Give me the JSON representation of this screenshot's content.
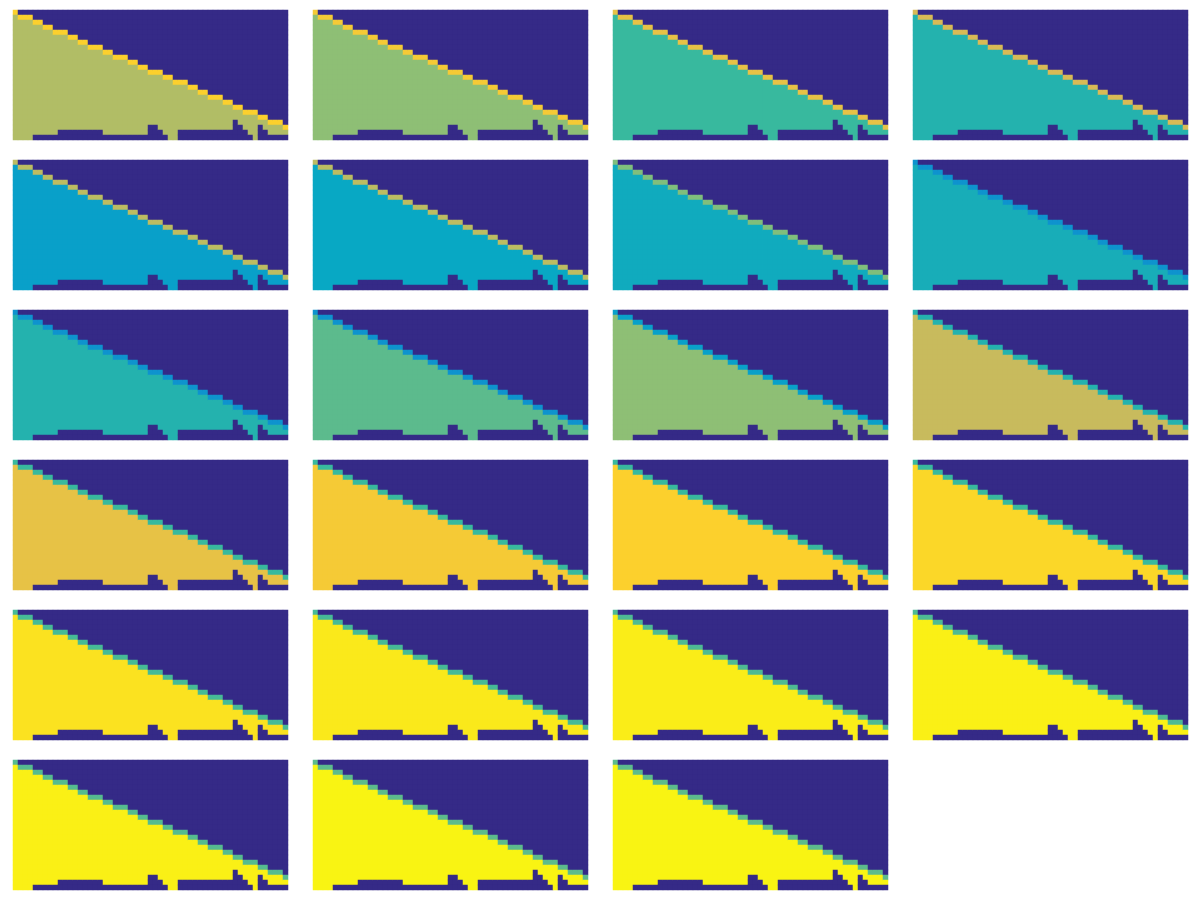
{
  "chart_data": {
    "type": "heatmap",
    "tick_labels": false,
    "color_range": [
      0,
      1
    ],
    "mask_rows": 26,
    "columns": [
      [
        0,
        25
      ],
      [
        1,
        25
      ],
      [
        1,
        25
      ],
      [
        1,
        25
      ],
      [
        2,
        24
      ],
      [
        2,
        24
      ],
      [
        3,
        24
      ],
      [
        3,
        24
      ],
      [
        4,
        24
      ],
      [
        4,
        23
      ],
      [
        4,
        23
      ],
      [
        5,
        23
      ],
      [
        5,
        23
      ],
      [
        6,
        23
      ],
      [
        6,
        23
      ],
      [
        7,
        23
      ],
      [
        7,
        23
      ],
      [
        7,
        23
      ],
      [
        8,
        24
      ],
      [
        8,
        24
      ],
      [
        9,
        24
      ],
      [
        9,
        24
      ],
      [
        9,
        24
      ],
      [
        10,
        24
      ],
      [
        10,
        24
      ],
      [
        11,
        24
      ],
      [
        11,
        24
      ],
      [
        12,
        22
      ],
      [
        12,
        22
      ],
      [
        12,
        23
      ],
      [
        13,
        24
      ],
      [
        13,
        25
      ],
      [
        14,
        25
      ],
      [
        14,
        23
      ],
      [
        14,
        23
      ],
      [
        15,
        23
      ],
      [
        15,
        23
      ],
      [
        16,
        23
      ],
      [
        16,
        23
      ],
      [
        17,
        23
      ],
      [
        17,
        23
      ],
      [
        17,
        23
      ],
      [
        18,
        23
      ],
      [
        18,
        23
      ],
      [
        19,
        21
      ],
      [
        19,
        22
      ],
      [
        20,
        23
      ],
      [
        20,
        24
      ],
      [
        20,
        25
      ],
      [
        21,
        22
      ],
      [
        21,
        23
      ],
      [
        22,
        24
      ],
      [
        22,
        24
      ],
      [
        22,
        24
      ],
      [
        23,
        24
      ]
    ],
    "frames": [
      {
        "level": 0.68,
        "edge": 0.88
      },
      {
        "level": 0.62,
        "edge": 0.85
      },
      {
        "level": 0.5,
        "edge": 0.8
      },
      {
        "level": 0.45,
        "edge": 0.75
      },
      {
        "level": 0.35,
        "edge": 0.7
      },
      {
        "level": 0.38,
        "edge": 0.7
      },
      {
        "level": 0.4,
        "edge": 0.6
      },
      {
        "level": 0.42,
        "edge": 0.3
      },
      {
        "level": 0.45,
        "edge": 0.3
      },
      {
        "level": 0.55,
        "edge": 0.3
      },
      {
        "level": 0.62,
        "edge": 0.35
      },
      {
        "level": 0.72,
        "edge": 0.45
      },
      {
        "level": 0.8,
        "edge": 0.5
      },
      {
        "level": 0.85,
        "edge": 0.5
      },
      {
        "level": 0.88,
        "edge": 0.5
      },
      {
        "level": 0.9,
        "edge": 0.5
      },
      {
        "level": 0.93,
        "edge": 0.52
      },
      {
        "level": 0.95,
        "edge": 0.52
      },
      {
        "level": 0.96,
        "edge": 0.53
      },
      {
        "level": 0.97,
        "edge": 0.53
      },
      {
        "level": 0.97,
        "edge": 0.54
      },
      {
        "level": 0.98,
        "edge": 0.55
      },
      {
        "level": 0.98,
        "edge": 0.55
      }
    ]
  }
}
